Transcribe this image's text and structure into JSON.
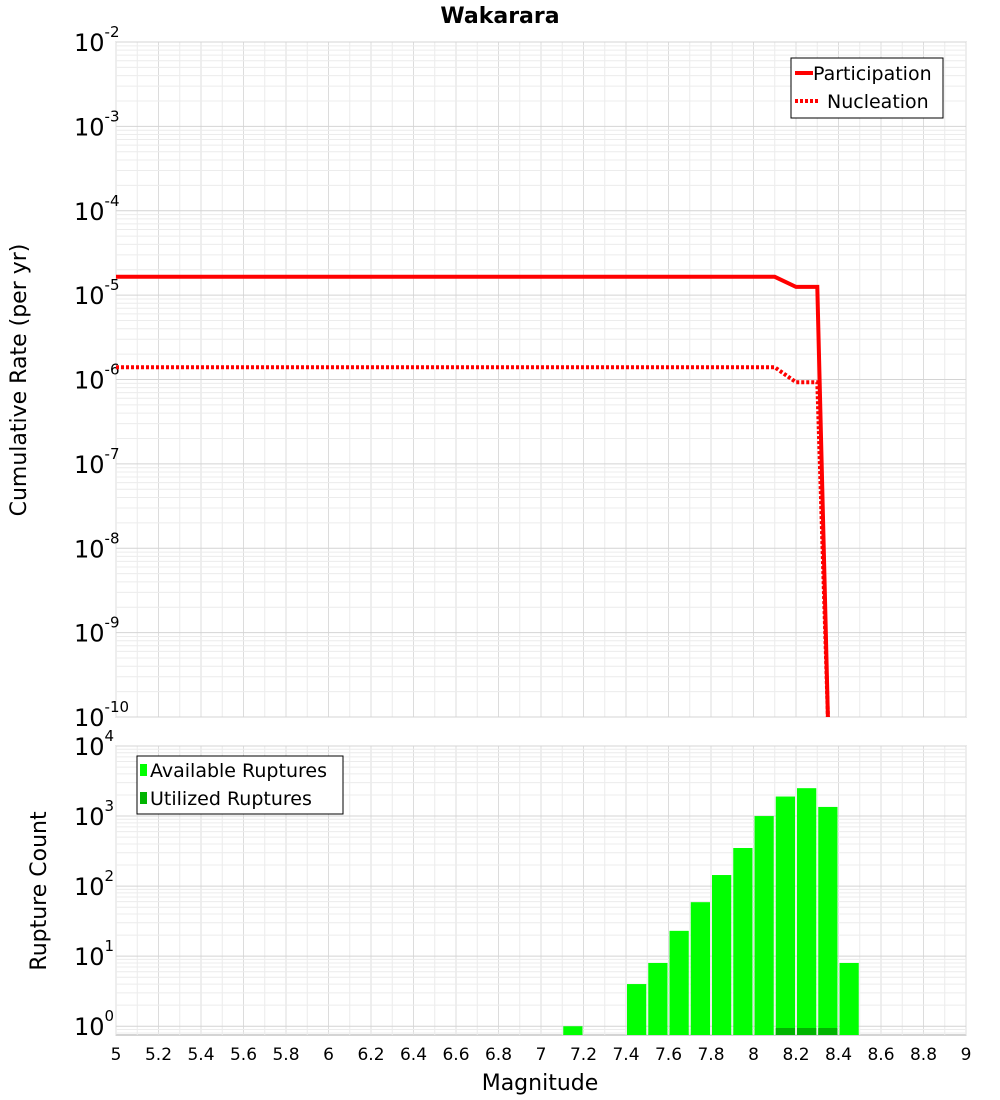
{
  "chart_data": {
    "title": "Wakarara",
    "xlabel": "Magnitude",
    "x_ticks": [
      "5",
      "5.2",
      "5.4",
      "5.6",
      "5.8",
      "6",
      "6.2",
      "6.4",
      "6.6",
      "6.8",
      "7",
      "7.2",
      "7.4",
      "7.6",
      "7.8",
      "8",
      "8.2",
      "8.4",
      "8.6",
      "8.8",
      "9"
    ],
    "xlim": [
      5,
      9
    ],
    "panels": [
      {
        "type": "line",
        "ylabel": "Cumulative Rate (per yr)",
        "yscale": "log",
        "ylim": [
          1e-10,
          0.01
        ],
        "y_ticks": [
          {
            "base": "10",
            "exp": "-2"
          },
          {
            "base": "10",
            "exp": "-3"
          },
          {
            "base": "10",
            "exp": "-4"
          },
          {
            "base": "10",
            "exp": "-5"
          },
          {
            "base": "10",
            "exp": "-6"
          },
          {
            "base": "10",
            "exp": "-7"
          },
          {
            "base": "10",
            "exp": "-8"
          },
          {
            "base": "10",
            "exp": "-9"
          },
          {
            "base": "10",
            "exp": "-10"
          }
        ],
        "legend": [
          "Participation",
          "Nucleation"
        ],
        "legend_position": "top-right",
        "series": [
          {
            "name": "Participation",
            "color": "#ff0000",
            "style": "solid",
            "x": [
              5.0,
              8.1,
              8.2,
              8.3,
              8.35
            ],
            "y": [
              1.65e-05,
              1.65e-05,
              1.25e-05,
              1.25e-05,
              1e-10
            ]
          },
          {
            "name": "Nucleation",
            "color": "#ff0000",
            "style": "dotted",
            "x": [
              5.0,
              8.1,
              8.2,
              8.3,
              8.35
            ],
            "y": [
              1.4e-06,
              1.4e-06,
              9.3e-07,
              9.3e-07,
              1e-10
            ]
          }
        ]
      },
      {
        "type": "bar",
        "ylabel": "Rupture Count",
        "yscale": "log",
        "ylim": [
          0.75,
          10000.0
        ],
        "y_ticks": [
          {
            "base": "10",
            "exp": "4"
          },
          {
            "base": "10",
            "exp": "3"
          },
          {
            "base": "10",
            "exp": "2"
          },
          {
            "base": "10",
            "exp": "1"
          },
          {
            "base": "10",
            "exp": "0"
          }
        ],
        "legend": [
          "Available Ruptures",
          "Utilized Ruptures"
        ],
        "legend_position": "top-left",
        "bin_width": 0.1,
        "series": [
          {
            "name": "Available Ruptures",
            "color": "#00ff00",
            "x": [
              7.15,
              7.45,
              7.55,
              7.65,
              7.75,
              7.85,
              7.95,
              8.05,
              8.15,
              8.25,
              8.35,
              8.45
            ],
            "values": [
              1,
              4,
              8,
              23,
              59,
              144,
              350,
              1000,
              1900,
              2500,
              1350,
              8
            ]
          },
          {
            "name": "Utilized Ruptures",
            "color": "#00b400",
            "x": [
              8.15,
              8.25,
              8.35
            ],
            "values": [
              1,
              1,
              1
            ]
          }
        ]
      }
    ]
  }
}
